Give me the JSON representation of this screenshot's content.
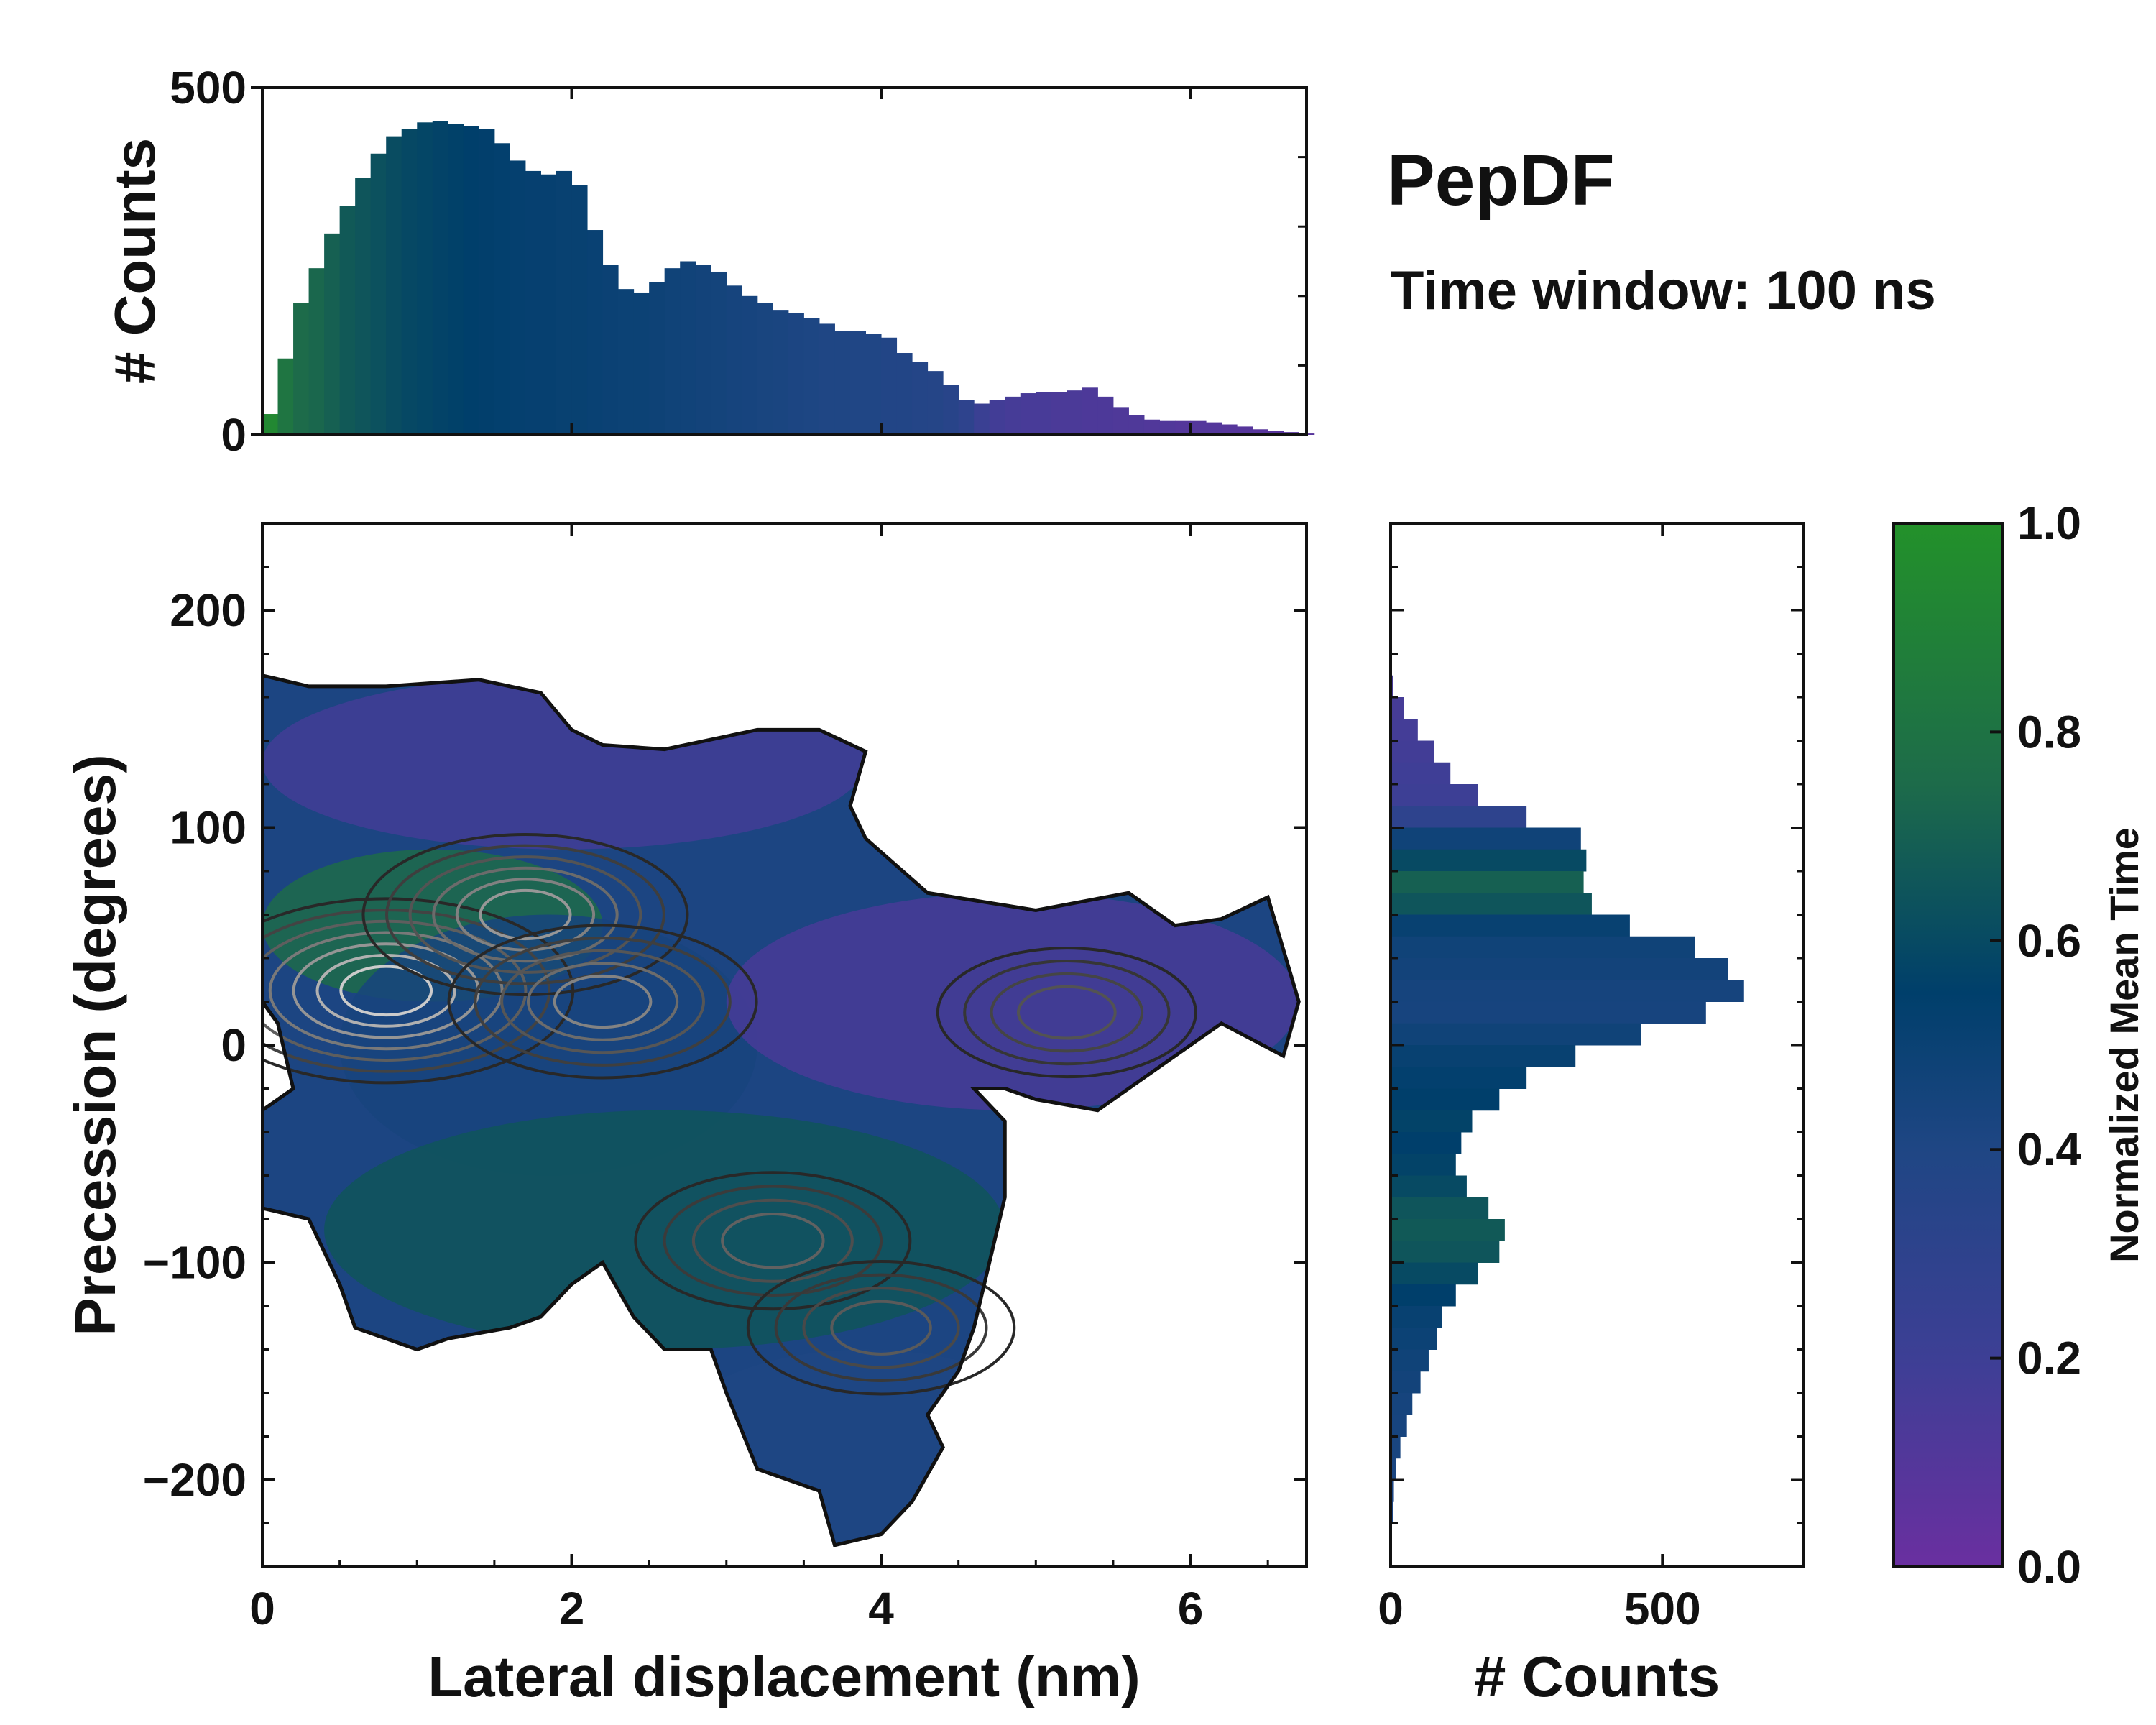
{
  "chart_data": [
    {
      "id": "top_hist",
      "type": "bar",
      "title": "",
      "xlabel": "",
      "ylabel": "# Counts",
      "xlim": [
        0,
        6.75
      ],
      "ylim": [
        0,
        500
      ],
      "yticks": [
        0,
        500
      ],
      "x": [
        0.0,
        0.1,
        0.2,
        0.3,
        0.4,
        0.5,
        0.6,
        0.7,
        0.8,
        0.9,
        1.0,
        1.1,
        1.2,
        1.3,
        1.4,
        1.5,
        1.6,
        1.7,
        1.8,
        1.9,
        2.0,
        2.1,
        2.2,
        2.3,
        2.4,
        2.5,
        2.6,
        2.7,
        2.8,
        2.9,
        3.0,
        3.1,
        3.2,
        3.3,
        3.4,
        3.5,
        3.6,
        3.7,
        3.8,
        3.9,
        4.0,
        4.1,
        4.2,
        4.3,
        4.4,
        4.5,
        4.6,
        4.7,
        4.8,
        4.9,
        5.0,
        5.1,
        5.2,
        5.3,
        5.4,
        5.5,
        5.6,
        5.7,
        5.8,
        5.9,
        6.0,
        6.1,
        6.2,
        6.3,
        6.4,
        6.5,
        6.6,
        6.7
      ],
      "values": [
        30,
        110,
        190,
        240,
        290,
        330,
        370,
        405,
        430,
        440,
        450,
        452,
        448,
        445,
        440,
        420,
        395,
        380,
        375,
        380,
        360,
        295,
        245,
        210,
        205,
        220,
        240,
        250,
        245,
        235,
        215,
        200,
        190,
        180,
        175,
        168,
        160,
        150,
        150,
        145,
        140,
        118,
        105,
        92,
        72,
        50,
        45,
        50,
        55,
        60,
        62,
        62,
        64,
        68,
        55,
        40,
        28,
        22,
        20,
        20,
        20,
        18,
        15,
        12,
        8,
        6,
        4,
        2
      ],
      "time_norm": [
        0.95,
        0.85,
        0.8,
        0.78,
        0.75,
        0.72,
        0.7,
        0.68,
        0.66,
        0.64,
        0.63,
        0.62,
        0.61,
        0.6,
        0.59,
        0.58,
        0.57,
        0.56,
        0.56,
        0.55,
        0.55,
        0.54,
        0.53,
        0.52,
        0.52,
        0.51,
        0.5,
        0.49,
        0.48,
        0.47,
        0.46,
        0.45,
        0.44,
        0.43,
        0.42,
        0.41,
        0.4,
        0.4,
        0.39,
        0.39,
        0.38,
        0.38,
        0.37,
        0.36,
        0.34,
        0.3,
        0.22,
        0.18,
        0.16,
        0.15,
        0.15,
        0.14,
        0.14,
        0.13,
        0.13,
        0.12,
        0.12,
        0.11,
        0.11,
        0.1,
        0.1,
        0.1,
        0.09,
        0.09,
        0.08,
        0.08,
        0.08,
        0.08
      ],
      "xticks": [
        0,
        2,
        4,
        6
      ]
    },
    {
      "id": "main_map",
      "type": "heatmap",
      "title": "",
      "xlabel": "Lateral displacement (nm)",
      "ylabel": "Precession (degrees)",
      "xlim": [
        0,
        6.75
      ],
      "ylim": [
        -240,
        240
      ],
      "xticks": [
        0,
        2,
        4,
        6
      ],
      "yticks": [
        -200,
        -100,
        0,
        100,
        200
      ],
      "regions": [
        {
          "name": "upper-purple",
          "x_range": [
            0.0,
            3.9
          ],
          "y_range": [
            90,
            170
          ],
          "value": 0.18
        },
        {
          "name": "left-green-core",
          "x_range": [
            0.0,
            2.2
          ],
          "y_range": [
            20,
            90
          ],
          "value": 0.8
        },
        {
          "name": "central-blue",
          "x_range": [
            0.5,
            3.2
          ],
          "y_range": [
            -60,
            60
          ],
          "value": 0.45
        },
        {
          "name": "right-purple-arm",
          "x_range": [
            3.0,
            6.7
          ],
          "y_range": [
            -30,
            70
          ],
          "value": 0.15
        },
        {
          "name": "lower-green",
          "x_range": [
            0.4,
            4.8
          ],
          "y_range": [
            -140,
            -30
          ],
          "value": 0.7
        },
        {
          "name": "bottom-blue-tail",
          "x_range": [
            2.6,
            5.2
          ],
          "y_range": [
            -230,
            -140
          ],
          "value": 0.4
        }
      ],
      "outline": [
        [
          0.0,
          170
        ],
        [
          0.3,
          165
        ],
        [
          0.8,
          165
        ],
        [
          1.4,
          168
        ],
        [
          1.8,
          162
        ],
        [
          2.0,
          145
        ],
        [
          2.2,
          138
        ],
        [
          2.6,
          136
        ],
        [
          3.2,
          145
        ],
        [
          3.6,
          145
        ],
        [
          3.9,
          135
        ],
        [
          3.8,
          110
        ],
        [
          3.9,
          95
        ],
        [
          4.3,
          70
        ],
        [
          5.0,
          62
        ],
        [
          5.6,
          70
        ],
        [
          5.9,
          55
        ],
        [
          6.2,
          58
        ],
        [
          6.5,
          68
        ],
        [
          6.7,
          20
        ],
        [
          6.6,
          -5
        ],
        [
          6.2,
          10
        ],
        [
          5.7,
          -15
        ],
        [
          5.4,
          -30
        ],
        [
          5.0,
          -25
        ],
        [
          4.8,
          -20
        ],
        [
          4.6,
          -20
        ],
        [
          4.8,
          -35
        ],
        [
          4.8,
          -70
        ],
        [
          4.7,
          -100
        ],
        [
          4.6,
          -130
        ],
        [
          4.5,
          -150
        ],
        [
          4.3,
          -170
        ],
        [
          4.4,
          -185
        ],
        [
          4.2,
          -210
        ],
        [
          4.0,
          -225
        ],
        [
          3.7,
          -230
        ],
        [
          3.6,
          -205
        ],
        [
          3.2,
          -195
        ],
        [
          3.0,
          -160
        ],
        [
          2.9,
          -140
        ],
        [
          2.6,
          -140
        ],
        [
          2.4,
          -125
        ],
        [
          2.2,
          -100
        ],
        [
          2.0,
          -110
        ],
        [
          1.8,
          -125
        ],
        [
          1.6,
          -130
        ],
        [
          1.2,
          -135
        ],
        [
          1.0,
          -140
        ],
        [
          0.8,
          -135
        ],
        [
          0.6,
          -130
        ],
        [
          0.5,
          -110
        ],
        [
          0.3,
          -80
        ],
        [
          0.0,
          -75
        ],
        [
          0.0,
          -30
        ],
        [
          0.2,
          -20
        ],
        [
          0.1,
          10
        ],
        [
          0.0,
          20
        ]
      ],
      "contour_peaks": [
        {
          "x": 0.8,
          "y": 25,
          "level": 1.0
        },
        {
          "x": 1.7,
          "y": 60,
          "level": 0.7
        },
        {
          "x": 2.2,
          "y": 20,
          "level": 0.6
        },
        {
          "x": 3.3,
          "y": -90,
          "level": 0.4
        },
        {
          "x": 4.0,
          "y": -130,
          "level": 0.35
        },
        {
          "x": 5.2,
          "y": 15,
          "level": 0.3
        }
      ]
    },
    {
      "id": "right_hist",
      "type": "bar",
      "orientation": "horizontal",
      "xlabel": "# Counts",
      "ylabel": "",
      "xlim": [
        0,
        760
      ],
      "ylim": [
        -240,
        240
      ],
      "xticks": [
        0,
        500
      ],
      "y": [
        165,
        155,
        145,
        135,
        125,
        115,
        105,
        95,
        85,
        75,
        65,
        55,
        45,
        35,
        25,
        15,
        5,
        -5,
        -15,
        -25,
        -35,
        -45,
        -55,
        -65,
        -75,
        -85,
        -95,
        -105,
        -115,
        -125,
        -135,
        -145,
        -155,
        -165,
        -175,
        -185,
        -195,
        -205,
        -215,
        -225,
        -235
      ],
      "values": [
        5,
        25,
        50,
        80,
        110,
        160,
        250,
        350,
        360,
        355,
        370,
        440,
        560,
        620,
        650,
        580,
        460,
        340,
        250,
        200,
        150,
        130,
        120,
        140,
        180,
        210,
        200,
        160,
        120,
        95,
        85,
        70,
        55,
        40,
        30,
        18,
        10,
        6,
        4,
        2,
        1
      ],
      "time_norm": [
        0.15,
        0.16,
        0.17,
        0.18,
        0.19,
        0.2,
        0.3,
        0.5,
        0.65,
        0.75,
        0.7,
        0.55,
        0.5,
        0.48,
        0.46,
        0.45,
        0.5,
        0.55,
        0.58,
        0.6,
        0.62,
        0.6,
        0.62,
        0.65,
        0.7,
        0.72,
        0.7,
        0.65,
        0.6,
        0.55,
        0.52,
        0.5,
        0.48,
        0.46,
        0.45,
        0.44,
        0.43,
        0.42,
        0.42,
        0.42,
        0.42
      ]
    },
    {
      "id": "colorbar",
      "type": "colorbar",
      "label": "Normalized Mean Time",
      "ticks": [
        "0.0",
        "0.2",
        "0.4",
        "0.6",
        "0.8",
        "1.0"
      ],
      "range": [
        0,
        1
      ],
      "colors": [
        "#6a2fa0",
        "#3d3f95",
        "#1f4684",
        "#003f6b",
        "#1d6b4a",
        "#23912a"
      ]
    }
  ],
  "title": "PepDF",
  "subtitle": "Time window: 100 ns"
}
